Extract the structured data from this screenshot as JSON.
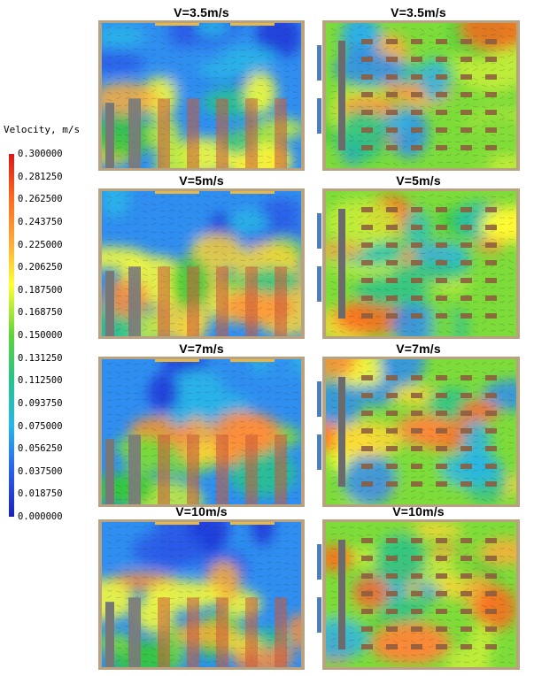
{
  "colorbar": {
    "title": "Velocity, m/s",
    "ticks": [
      "0.300000",
      "0.281250",
      "0.262500",
      "0.243750",
      "0.225000",
      "0.206250",
      "0.187500",
      "0.168750",
      "0.150000",
      "0.131250",
      "0.112500",
      "0.093750",
      "0.075000",
      "0.056250",
      "0.037500",
      "0.018750",
      "0.000000"
    ],
    "colors": [
      "#d7191c",
      "#f03b20",
      "#fd6a1e",
      "#fd8d3c",
      "#fdae3a",
      "#fdd735",
      "#ffff33",
      "#c8ef3a",
      "#7ddc3a",
      "#36c83c",
      "#28c38a",
      "#27c3b4",
      "#29b6e8",
      "#2f8ef0",
      "#2a5ce8",
      "#1f37d8",
      "#1c22b8"
    ]
  },
  "panels": [
    {
      "label": "V=3.5m/s",
      "view": "side"
    },
    {
      "label": "V=3.5m/s",
      "view": "top"
    },
    {
      "label": "V=5m/s",
      "view": "side"
    },
    {
      "label": "V=5m/s",
      "view": "top"
    },
    {
      "label": "V=7m/s",
      "view": "side"
    },
    {
      "label": "V=7m/s",
      "view": "top"
    },
    {
      "label": "V=10m/s",
      "view": "side"
    },
    {
      "label": "V=10m/s",
      "view": "top"
    }
  ]
}
